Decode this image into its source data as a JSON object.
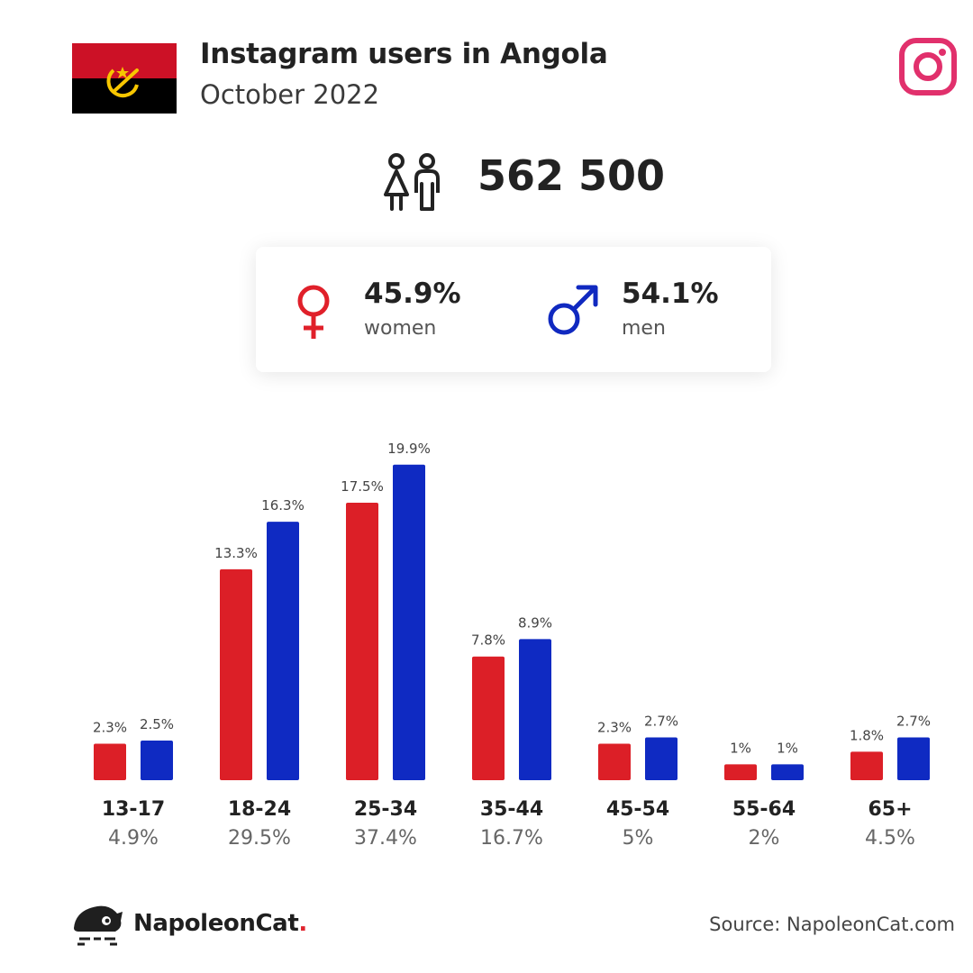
{
  "header": {
    "title": "Instagram users in Angola",
    "subtitle": "October 2022",
    "flag_icon": "angola-flag-icon",
    "platform_icon": "instagram-icon"
  },
  "total": {
    "value": "562 500",
    "icon": "users-icon"
  },
  "gender": {
    "women": {
      "percent": "45.9%",
      "label": "women",
      "icon": "female-symbol-icon",
      "color": "#e0202a"
    },
    "men": {
      "percent": "54.1%",
      "label": "men",
      "icon": "male-symbol-icon",
      "color": "#1029c0"
    }
  },
  "chart_data": {
    "type": "bar",
    "categories": [
      "13-17",
      "18-24",
      "25-34",
      "35-44",
      "45-54",
      "55-64",
      "65+"
    ],
    "category_totals": [
      "4.9%",
      "29.5%",
      "37.4%",
      "16.7%",
      "5%",
      "2%",
      "4.5%"
    ],
    "series": [
      {
        "color": "#dc1f27",
        "values": [
          2.3,
          13.3,
          17.5,
          7.8,
          2.3,
          1,
          1.8
        ],
        "labels": [
          "2.3%",
          "13.3%",
          "17.5%",
          "7.8%",
          "2.3%",
          "1%",
          "1.8%"
        ]
      },
      {
        "color": "#0f2ac2",
        "values": [
          2.5,
          16.3,
          19.9,
          8.9,
          2.7,
          1,
          2.7
        ],
        "labels": [
          "2.5%",
          "16.3%",
          "19.9%",
          "8.9%",
          "2.7%",
          "1%",
          "2.7%"
        ]
      }
    ],
    "title": "",
    "xlabel": "",
    "ylabel": "",
    "ylim": [
      0,
      20
    ],
    "grid": false,
    "legend": "none"
  },
  "footer": {
    "brand_main": "NapoleonCat",
    "brand_dot": ".",
    "source": "Source: NapoleonCat.com",
    "logo_icon": "napoleoncat-logo-icon"
  }
}
